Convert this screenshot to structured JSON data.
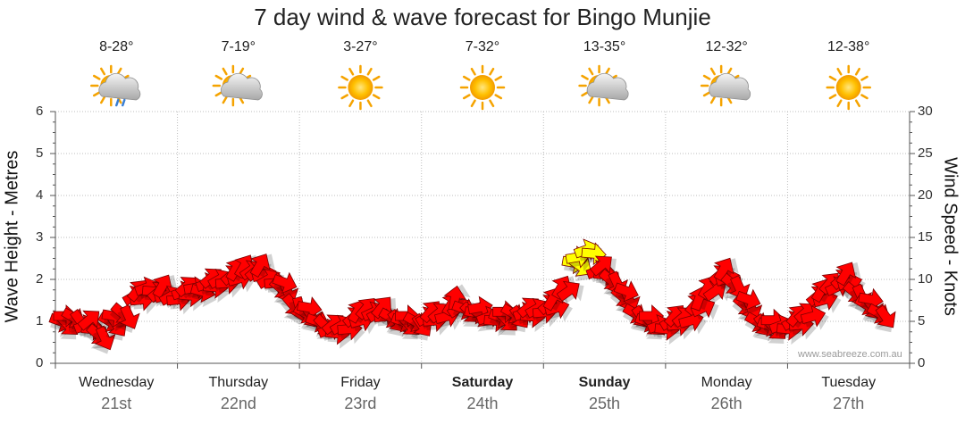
{
  "title": "7 day wind & wave forecast for Bingo Munjie",
  "credit": "www.seabreeze.com.au",
  "days": [
    {
      "name": "Wednesday",
      "date": "21st",
      "temp": "8-28°",
      "icon": "sun-cloud-rain-icon",
      "bold": false
    },
    {
      "name": "Thursday",
      "date": "22nd",
      "temp": "7-19°",
      "icon": "sun-cloud-icon",
      "bold": false
    },
    {
      "name": "Friday",
      "date": "23rd",
      "temp": "3-27°",
      "icon": "sun-icon",
      "bold": false
    },
    {
      "name": "Saturday",
      "date": "24th",
      "temp": "7-32°",
      "icon": "sun-icon",
      "bold": true
    },
    {
      "name": "Sunday",
      "date": "25th",
      "temp": "13-35°",
      "icon": "sun-cloud-icon",
      "bold": true
    },
    {
      "name": "Monday",
      "date": "26th",
      "temp": "12-32°",
      "icon": "sun-cloud-icon",
      "bold": false
    },
    {
      "name": "Tuesday",
      "date": "27th",
      "temp": "12-38°",
      "icon": "sun-icon",
      "bold": false
    }
  ],
  "chart_data": {
    "type": "line",
    "ylabel_left": "Wave Height - Metres",
    "ylabel_right": "Wind Speed - Knots",
    "yleft_ticks": [
      "0",
      "1",
      "2",
      "3",
      "4",
      "5",
      "6"
    ],
    "yright_ticks": [
      "0",
      "5",
      "10",
      "15",
      "20",
      "25",
      "30"
    ],
    "ylim_left": [
      0,
      6
    ],
    "ylim_right": [
      0,
      30
    ],
    "grid": true,
    "series": [
      {
        "marker": "wind-arrow",
        "color": "#ff0000",
        "highlight_color": "#ffff00",
        "points": [
          {
            "day": 0.0,
            "knots": 5,
            "dir": 20
          },
          {
            "day": 0.1,
            "knots": 5.5,
            "dir": 30
          },
          {
            "day": 0.2,
            "knots": 4.5,
            "dir": -20
          },
          {
            "day": 0.3,
            "knots": 3.5,
            "dir": 40
          },
          {
            "day": 0.4,
            "knots": 5,
            "dir": 30
          },
          {
            "day": 0.5,
            "knots": 6,
            "dir": 40
          },
          {
            "day": 0.6,
            "knots": 8,
            "dir": -30
          },
          {
            "day": 0.7,
            "knots": 9,
            "dir": -20
          },
          {
            "day": 0.8,
            "knots": 8.5,
            "dir": -40
          },
          {
            "day": 0.9,
            "knots": 8,
            "dir": -30
          },
          {
            "day": 1.0,
            "knots": 8.5,
            "dir": -20
          },
          {
            "day": 1.1,
            "knots": 9,
            "dir": -10
          },
          {
            "day": 1.2,
            "knots": 9.5,
            "dir": -20
          },
          {
            "day": 1.3,
            "knots": 10,
            "dir": -30
          },
          {
            "day": 1.4,
            "knots": 10.5,
            "dir": -40
          },
          {
            "day": 1.5,
            "knots": 11.5,
            "dir": -60
          },
          {
            "day": 1.6,
            "knots": 11,
            "dir": -40
          },
          {
            "day": 1.7,
            "knots": 10,
            "dir": -30
          },
          {
            "day": 1.8,
            "knots": 9,
            "dir": 40
          },
          {
            "day": 1.9,
            "knots": 7,
            "dir": 50
          },
          {
            "day": 2.0,
            "knots": 6,
            "dir": 30
          },
          {
            "day": 2.1,
            "knots": 5,
            "dir": 20
          },
          {
            "day": 2.2,
            "knots": 4,
            "dir": -20
          },
          {
            "day": 2.3,
            "knots": 4.5,
            "dir": -30
          },
          {
            "day": 2.4,
            "knots": 5.5,
            "dir": -40
          },
          {
            "day": 2.5,
            "knots": 6.5,
            "dir": -50
          },
          {
            "day": 2.6,
            "knots": 6,
            "dir": -30
          },
          {
            "day": 2.7,
            "knots": 5.5,
            "dir": 30
          },
          {
            "day": 2.8,
            "knots": 5,
            "dir": 20
          },
          {
            "day": 2.9,
            "knots": 5,
            "dir": 30
          },
          {
            "day": 3.0,
            "knots": 5.5,
            "dir": -30
          },
          {
            "day": 3.1,
            "knots": 6,
            "dir": -40
          },
          {
            "day": 3.2,
            "knots": 7,
            "dir": -60
          },
          {
            "day": 3.3,
            "knots": 6.5,
            "dir": 20
          },
          {
            "day": 3.4,
            "knots": 6,
            "dir": 10
          },
          {
            "day": 3.5,
            "knots": 5.5,
            "dir": -20
          },
          {
            "day": 3.6,
            "knots": 5.5,
            "dir": 20
          },
          {
            "day": 3.7,
            "knots": 6,
            "dir": 30
          },
          {
            "day": 3.8,
            "knots": 6,
            "dir": -20
          },
          {
            "day": 3.9,
            "knots": 6.5,
            "dir": -30
          },
          {
            "day": 4.0,
            "knots": 7,
            "dir": -40
          },
          {
            "day": 4.1,
            "knots": 9,
            "dir": -60
          },
          {
            "day": 4.2,
            "knots": 12,
            "dir": 10
          },
          {
            "day": 4.3,
            "knots": 13.5,
            "dir": -20
          },
          {
            "day": 4.4,
            "knots": 11,
            "dir": -20
          },
          {
            "day": 4.5,
            "knots": 10,
            "dir": 40
          },
          {
            "day": 4.6,
            "knots": 8,
            "dir": 40
          },
          {
            "day": 4.7,
            "knots": 6,
            "dir": 30
          },
          {
            "day": 4.8,
            "knots": 5,
            "dir": 20
          },
          {
            "day": 4.9,
            "knots": 4.5,
            "dir": -20
          },
          {
            "day": 5.0,
            "knots": 5,
            "dir": -30
          },
          {
            "day": 5.1,
            "knots": 5.5,
            "dir": -40
          },
          {
            "day": 5.2,
            "knots": 7,
            "dir": -50
          },
          {
            "day": 5.3,
            "knots": 9,
            "dir": -60
          },
          {
            "day": 5.4,
            "knots": 10.5,
            "dir": -40
          },
          {
            "day": 5.5,
            "knots": 9.5,
            "dir": 40
          },
          {
            "day": 5.6,
            "knots": 7,
            "dir": 40
          },
          {
            "day": 5.7,
            "knots": 5,
            "dir": 30
          },
          {
            "day": 5.8,
            "knots": 4.5,
            "dir": 20
          },
          {
            "day": 5.9,
            "knots": 4.5,
            "dir": -20
          },
          {
            "day": 6.0,
            "knots": 5,
            "dir": -30
          },
          {
            "day": 6.1,
            "knots": 6,
            "dir": -40
          },
          {
            "day": 6.2,
            "knots": 8,
            "dir": -40
          },
          {
            "day": 6.3,
            "knots": 9.5,
            "dir": -50
          },
          {
            "day": 6.4,
            "knots": 10,
            "dir": -40
          },
          {
            "day": 6.5,
            "knots": 8.5,
            "dir": 40
          },
          {
            "day": 6.6,
            "knots": 7,
            "dir": 30
          },
          {
            "day": 6.7,
            "knots": 6,
            "dir": 30
          }
        ]
      }
    ]
  }
}
